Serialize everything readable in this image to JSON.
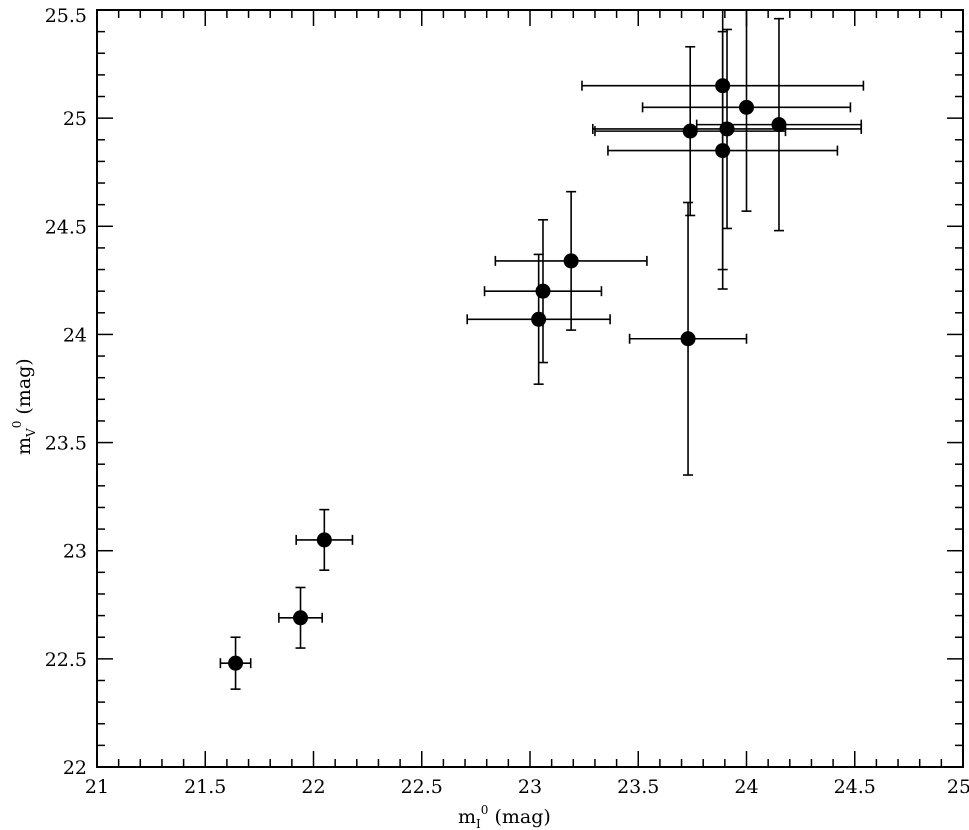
{
  "chart_data": {
    "type": "scatter",
    "xlabel": {
      "base": "m",
      "sub": "I",
      "sup": "0",
      "unit": "(mag)"
    },
    "ylabel": {
      "base": "m",
      "sub": "V",
      "sup": "0",
      "unit": "(mag)"
    },
    "xlim": [
      21,
      25
    ],
    "ylim": [
      22,
      25.5
    ],
    "x_ticks": [
      "21",
      "21.5",
      "22",
      "22.5",
      "23",
      "23.5",
      "24",
      "24.5",
      "25"
    ],
    "y_ticks": [
      "22",
      "22.5",
      "23",
      "23.5",
      "24",
      "24.5",
      "25",
      "25.5"
    ],
    "grid": false,
    "points": [
      {
        "x": 21.64,
        "y": 22.48,
        "xerr": 0.07,
        "yerr": 0.12
      },
      {
        "x": 21.94,
        "y": 22.69,
        "xerr": 0.1,
        "yerr": 0.14
      },
      {
        "x": 22.05,
        "y": 23.05,
        "xerr": 0.13,
        "yerr": 0.14
      },
      {
        "x": 23.04,
        "y": 24.07,
        "xerr": 0.33,
        "yerr": 0.3
      },
      {
        "x": 23.06,
        "y": 24.2,
        "xerr": 0.27,
        "yerr": 0.33
      },
      {
        "x": 23.19,
        "y": 24.34,
        "xerr": 0.35,
        "yerr": 0.32
      },
      {
        "x": 23.73,
        "y": 23.98,
        "xerr": 0.27,
        "yerr": 0.63
      },
      {
        "x": 23.74,
        "y": 24.94,
        "xerr": 0.44,
        "yerr": 0.39
      },
      {
        "x": 23.89,
        "y": 25.15,
        "xerr": 0.65,
        "yerr": 0.94
      },
      {
        "x": 23.89,
        "y": 24.85,
        "xerr": 0.53,
        "yerr": 0.55
      },
      {
        "x": 23.91,
        "y": 24.95,
        "xerr": 0.62,
        "yerr": 0.46
      },
      {
        "x": 24.0,
        "y": 25.05,
        "xerr": 0.48,
        "yerr": 0.48
      },
      {
        "x": 24.15,
        "y": 24.97,
        "xerr": 0.38,
        "yerr": 0.49
      }
    ]
  }
}
